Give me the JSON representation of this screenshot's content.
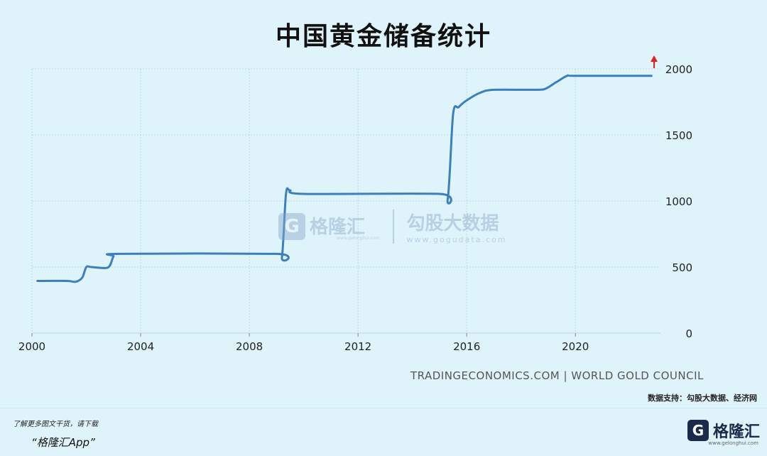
{
  "title": "中国黄金储备统计",
  "source": "TRADINGECONOMICS.COM | WORLD GOLD COUNCIL",
  "data_support": "数据支持：勾股大数据、经济网",
  "watermark": {
    "brand": "格隆汇",
    "brand_url": "www.gelonghui.com",
    "data_brand": "勾股大数据",
    "data_url": "www.gogudata.com"
  },
  "footer": {
    "promo_line1": "了解更多图文干货，请下载",
    "promo_line2": "“格隆汇App”",
    "brand": "格隆汇",
    "brand_url": "www.gelonghui.com",
    "logo_letter": "G"
  },
  "colors": {
    "background": "#dff3fb",
    "line": "#3a7fbf",
    "grid": "#b9d9e6",
    "arrow": "#e02020"
  },
  "chart_data": {
    "type": "line",
    "title": "中国黄金储备统计",
    "xlabel": "",
    "ylabel": "",
    "xlim": [
      2000,
      2023
    ],
    "ylim": [
      0,
      2000
    ],
    "x_ticks": [
      2000,
      2004,
      2008,
      2012,
      2016,
      2020
    ],
    "y_ticks": [
      0,
      500,
      1000,
      1500,
      2000
    ],
    "grid": true,
    "y_axis_position": "right",
    "trend_marker": "up-arrow",
    "series": [
      {
        "x": [
          2000.2,
          2001.3,
          2001.6,
          2001.85,
          2002.0,
          2002.2,
          2002.8,
          2003.0,
          2003.2,
          2009.0,
          2009.2,
          2009.35,
          2009.5,
          2010.0,
          2015.0,
          2015.3,
          2015.5,
          2015.7,
          2016.0,
          2016.5,
          2017.0,
          2018.5,
          2018.9,
          2019.3,
          2019.7,
          2020.0,
          2022.8
        ],
        "y": [
          395,
          395,
          388,
          420,
          500,
          500,
          497,
          580,
          600,
          600,
          575,
          1054,
          1080,
          1054,
          1054,
          1015,
          1658,
          1710,
          1762,
          1820,
          1842,
          1842,
          1850,
          1900,
          1948,
          1948,
          1948
        ]
      }
    ]
  }
}
